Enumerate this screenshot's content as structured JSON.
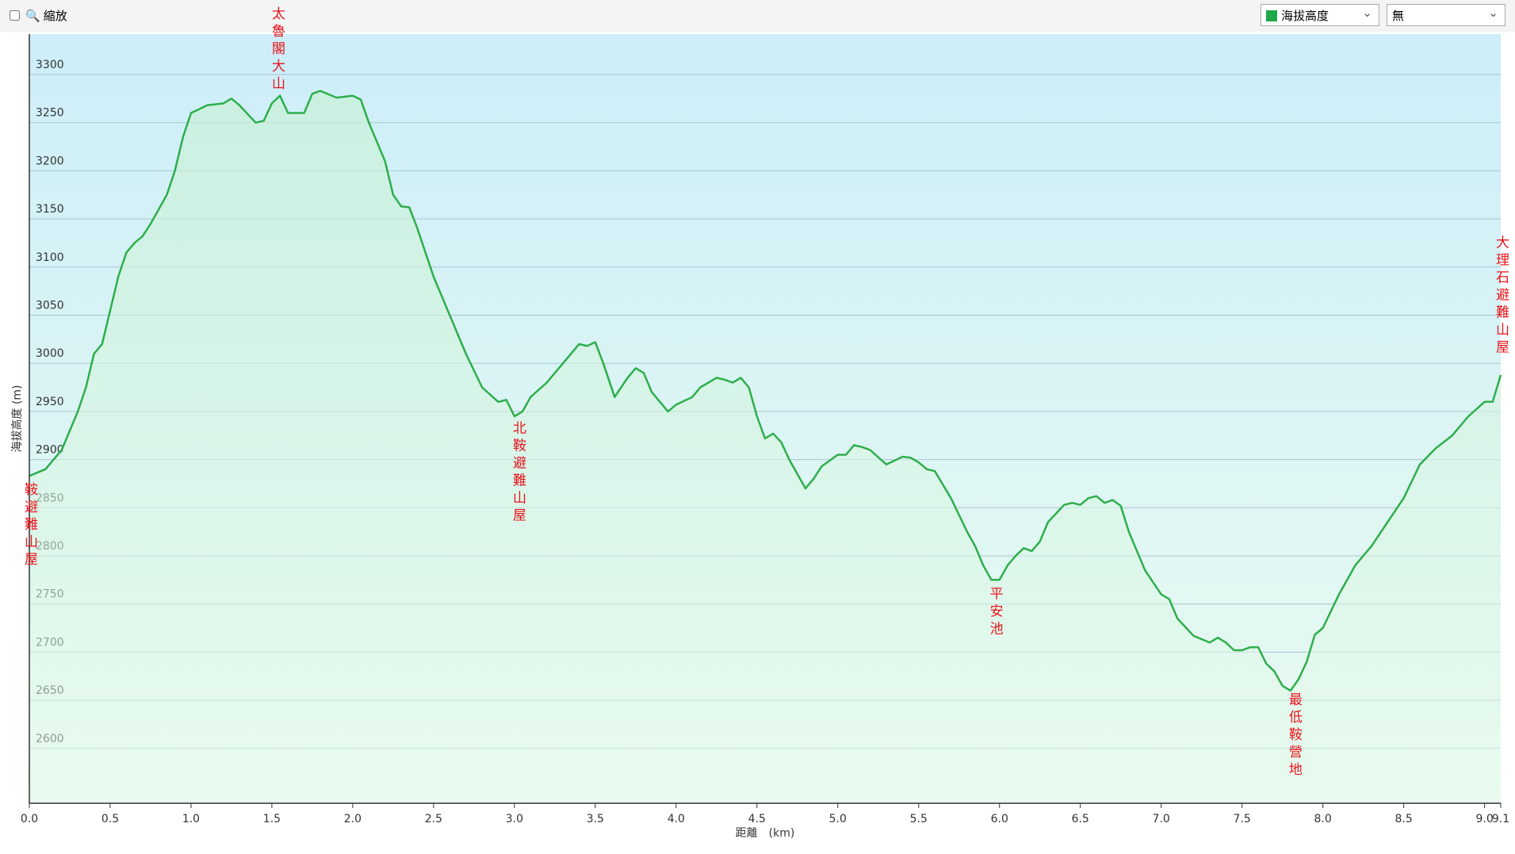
{
  "controls": {
    "zoom": "縮放",
    "secondary_select": "無"
  },
  "chart_data": {
    "type": "line",
    "y_label": "海拔高度 (m)",
    "x_label": "距離　(km)",
    "x": [
      0,
      0.1,
      0.2,
      0.3,
      0.35,
      0.4,
      0.45,
      0.5,
      0.55,
      0.6,
      0.65,
      0.7,
      0.75,
      0.8,
      0.85,
      0.9,
      0.95,
      1.0,
      1.1,
      1.2,
      1.25,
      1.3,
      1.4,
      1.45,
      1.5,
      1.55,
      1.6,
      1.7,
      1.75,
      1.8,
      1.9,
      2.0,
      2.05,
      2.1,
      2.2,
      2.25,
      2.3,
      2.35,
      2.4,
      2.5,
      2.6,
      2.7,
      2.8,
      2.9,
      2.95,
      3.0,
      3.05,
      3.1,
      3.2,
      3.3,
      3.4,
      3.45,
      3.5,
      3.55,
      3.62,
      3.7,
      3.75,
      3.8,
      3.85,
      3.95,
      4.0,
      4.1,
      4.15,
      4.2,
      4.25,
      4.3,
      4.35,
      4.4,
      4.45,
      4.5,
      4.55,
      4.6,
      4.65,
      4.7,
      4.8,
      4.85,
      4.9,
      5.0,
      5.05,
      5.1,
      5.15,
      5.2,
      5.3,
      5.4,
      5.45,
      5.5,
      5.55,
      5.6,
      5.7,
      5.8,
      5.85,
      5.9,
      5.95,
      6.0,
      6.05,
      6.1,
      6.15,
      6.2,
      6.25,
      6.3,
      6.4,
      6.45,
      6.5,
      6.55,
      6.6,
      6.65,
      6.7,
      6.75,
      6.8,
      6.9,
      7.0,
      7.05,
      7.1,
      7.2,
      7.3,
      7.35,
      7.4,
      7.45,
      7.5,
      7.55,
      7.6,
      7.65,
      7.7,
      7.75,
      7.8,
      7.85,
      7.9,
      7.95,
      8.0,
      8.1,
      8.2,
      8.3,
      8.4,
      8.5,
      8.6,
      8.7,
      8.8,
      8.9,
      9.0,
      9.05,
      9.1
    ],
    "series": [
      {
        "name": "海拔高度",
        "color": "#2eae4c",
        "values": [
          2883,
          2890,
          2910,
          2950,
          2975,
          3010,
          3020,
          3055,
          3090,
          3115,
          3125,
          3132,
          3145,
          3160,
          3175,
          3200,
          3235,
          3260,
          3268,
          3270,
          3275,
          3268,
          3250,
          3252,
          3270,
          3278,
          3260,
          3260,
          3280,
          3283,
          3276,
          3278,
          3274,
          3250,
          3210,
          3175,
          3163,
          3162,
          3140,
          3090,
          3050,
          3010,
          2975,
          2960,
          2962,
          2945,
          2950,
          2965,
          2980,
          3000,
          3020,
          3018,
          3022,
          3000,
          2965,
          2985,
          2995,
          2990,
          2970,
          2950,
          2957,
          2965,
          2975,
          2980,
          2985,
          2983,
          2980,
          2985,
          2975,
          2945,
          2922,
          2927,
          2918,
          2900,
          2870,
          2880,
          2893,
          2905,
          2905,
          2915,
          2913,
          2910,
          2895,
          2903,
          2902,
          2897,
          2890,
          2888,
          2860,
          2825,
          2810,
          2790,
          2775,
          2775,
          2790,
          2800,
          2808,
          2805,
          2815,
          2835,
          2853,
          2855,
          2853,
          2860,
          2862,
          2855,
          2858,
          2852,
          2825,
          2785,
          2760,
          2755,
          2735,
          2717,
          2710,
          2715,
          2710,
          2702,
          2702,
          2705,
          2705,
          2688,
          2680,
          2665,
          2660,
          2672,
          2690,
          2718,
          2725,
          2760,
          2790,
          2810,
          2835,
          2860,
          2895,
          2912,
          2925,
          2945,
          2960,
          2960,
          2988
        ]
      }
    ],
    "annotations": [
      {
        "text": "鞍避難山屋",
        "x": 0,
        "placement": "below"
      },
      {
        "text": "太魯閣大山",
        "x": 1.53,
        "placement": "top"
      },
      {
        "text": "北鞍避難山屋",
        "x": 3.02,
        "placement": "below"
      },
      {
        "text": "平安池",
        "x": 5.97,
        "placement": "below"
      },
      {
        "text": "最低鞍營地",
        "x": 7.82,
        "placement": "below"
      },
      {
        "text": "大理石避難山屋",
        "x": 9.1,
        "placement": "above"
      }
    ],
    "xlim": [
      0,
      9.1
    ],
    "ylim": [
      2543,
      3342
    ],
    "xticks": [
      {
        "value": 0,
        "label": "0.0"
      },
      0.5,
      {
        "value": 1,
        "label": "1.0"
      },
      1.5,
      {
        "value": 2,
        "label": "2.0"
      },
      2.5,
      {
        "value": 3,
        "label": "3.0"
      },
      3.5,
      {
        "value": 4,
        "label": "4.0"
      },
      4.5,
      {
        "value": 5,
        "label": "5.0"
      },
      5.5,
      {
        "value": 6,
        "label": "6.0"
      },
      6.5,
      {
        "value": 7,
        "label": "7.0"
      },
      7.5,
      {
        "value": 8,
        "label": "8.0"
      },
      8.5,
      {
        "value": 9,
        "label": "9.0"
      },
      9.1
    ],
    "yticks": [
      2600,
      2650,
      2700,
      2750,
      2800,
      2850,
      2900,
      2950,
      3000,
      3050,
      3100,
      3150,
      3200,
      3250,
      3300
    ],
    "grid": true
  }
}
